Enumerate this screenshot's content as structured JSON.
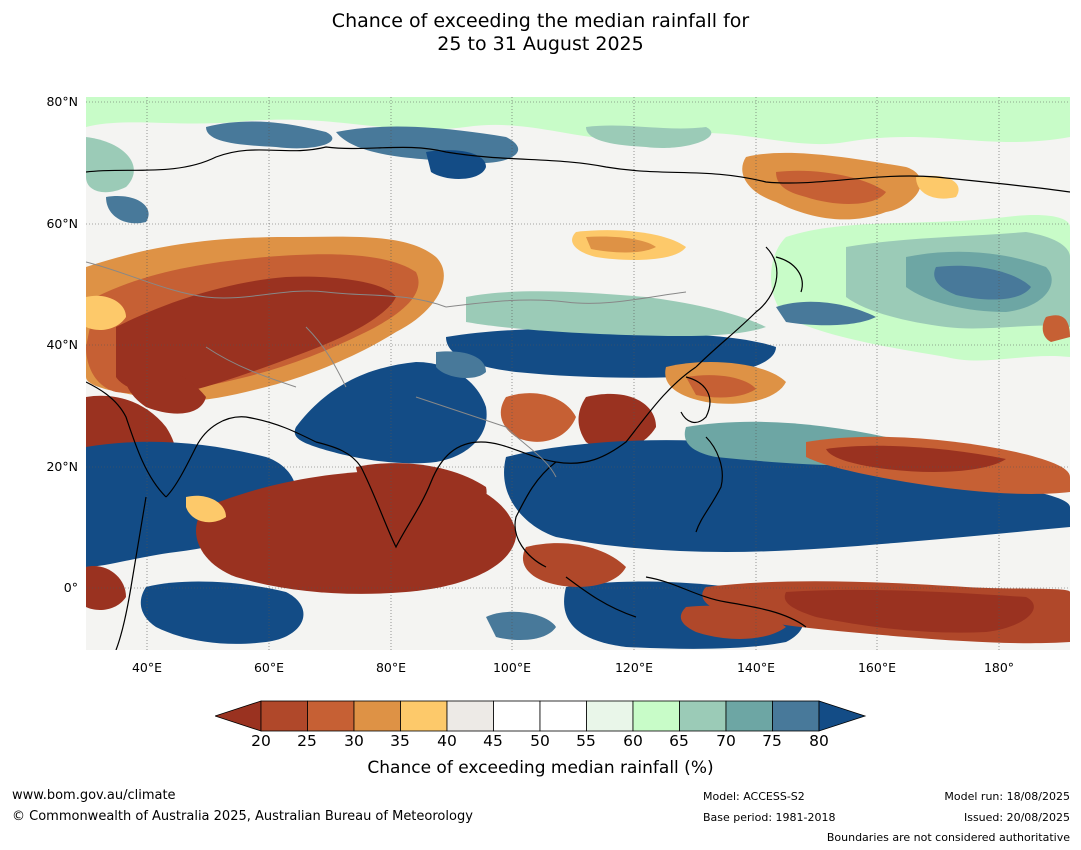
{
  "title": {
    "line1": "Chance of exceeding the median rainfall for",
    "line2": "25 to 31 August 2025"
  },
  "map": {
    "lat_labels": [
      "80°N",
      "60°N",
      "40°N",
      "20°N",
      "0°"
    ],
    "lon_labels": [
      "40°E",
      "60°E",
      "80°E",
      "100°E",
      "120°E",
      "140°E",
      "160°E",
      "180°"
    ]
  },
  "colorbar": {
    "ticks": [
      "20",
      "25",
      "30",
      "35",
      "40",
      "45",
      "50",
      "55",
      "60",
      "65",
      "70",
      "75",
      "80"
    ],
    "colors": [
      "#9a3220",
      "#b0482a",
      "#c66034",
      "#de9245",
      "#fdc96a",
      "#edeae6",
      "#ffffff",
      "#ffffff",
      "#e9f6e9",
      "#c8fcc8",
      "#9bcbb7",
      "#6da6a4",
      "#48799a",
      "#134c86"
    ],
    "label": "Chance of exceeding median rainfall (%)"
  },
  "footer": {
    "url": "www.bom.gov.au/climate",
    "copyright": "© Commonwealth of Australia 2025, Australian Bureau of Meteorology",
    "model": "Model: ACCESS-S2",
    "base_period": "Base period: 1981-2018",
    "model_run": "Model run: 18/08/2025",
    "issued": "Issued: 20/08/2025",
    "disclaimer": "Boundaries are not considered authoritative"
  }
}
